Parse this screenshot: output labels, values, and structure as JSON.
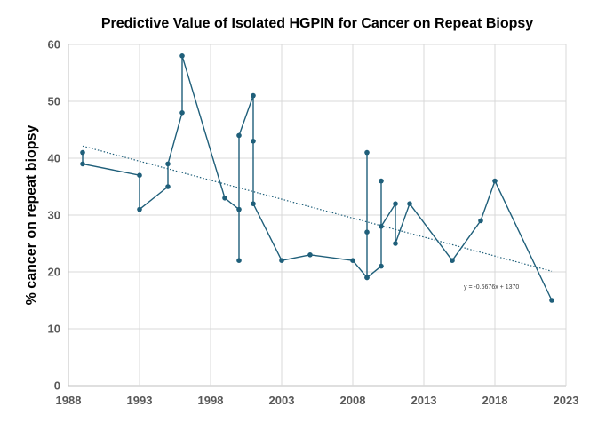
{
  "chart_data": {
    "type": "scatter",
    "title": "Predictive Value of Isolated HGPIN for Cancer on Repeat Biopsy",
    "xlabel": "",
    "ylabel": "% cancer on repeat biopsy",
    "xlim": [
      1988,
      2023
    ],
    "ylim": [
      0,
      60
    ],
    "x_ticks": [
      1988,
      1993,
      1998,
      2003,
      2008,
      2013,
      2018,
      2023
    ],
    "y_ticks": [
      0,
      10,
      20,
      30,
      40,
      50,
      60
    ],
    "grid": true,
    "legend": "none",
    "series": [
      {
        "color": "#1f5f7a",
        "points": [
          {
            "x": 1989,
            "y": 41
          },
          {
            "x": 1989,
            "y": 39
          },
          {
            "x": 1993,
            "y": 37
          },
          {
            "x": 1993,
            "y": 31
          },
          {
            "x": 1995,
            "y": 35
          },
          {
            "x": 1995,
            "y": 39
          },
          {
            "x": 1996,
            "y": 48
          },
          {
            "x": 1996,
            "y": 58
          },
          {
            "x": 1999,
            "y": 33
          },
          {
            "x": 2000,
            "y": 31
          },
          {
            "x": 2000,
            "y": 22
          },
          {
            "x": 2000,
            "y": 44
          },
          {
            "x": 2001,
            "y": 51
          },
          {
            "x": 2001,
            "y": 43
          },
          {
            "x": 2001,
            "y": 32
          },
          {
            "x": 2003,
            "y": 22
          },
          {
            "x": 2005,
            "y": 23
          },
          {
            "x": 2008,
            "y": 22
          },
          {
            "x": 2009,
            "y": 19
          },
          {
            "x": 2009,
            "y": 41
          },
          {
            "x": 2009,
            "y": 27
          },
          {
            "x": 2009,
            "y": 19
          },
          {
            "x": 2010,
            "y": 21
          },
          {
            "x": 2010,
            "y": 36
          },
          {
            "x": 2010,
            "y": 28
          },
          {
            "x": 2011,
            "y": 32
          },
          {
            "x": 2011,
            "y": 25
          },
          {
            "x": 2012,
            "y": 32
          },
          {
            "x": 2015,
            "y": 22
          },
          {
            "x": 2017,
            "y": 29
          },
          {
            "x": 2018,
            "y": 36
          },
          {
            "x": 2022,
            "y": 15
          }
        ]
      }
    ],
    "trendline": {
      "slope": -0.6676,
      "intercept": 1370,
      "x_range": [
        1989,
        2022
      ],
      "label": "y = -0.6676x + 1370",
      "color": "#1f5f7a"
    }
  }
}
